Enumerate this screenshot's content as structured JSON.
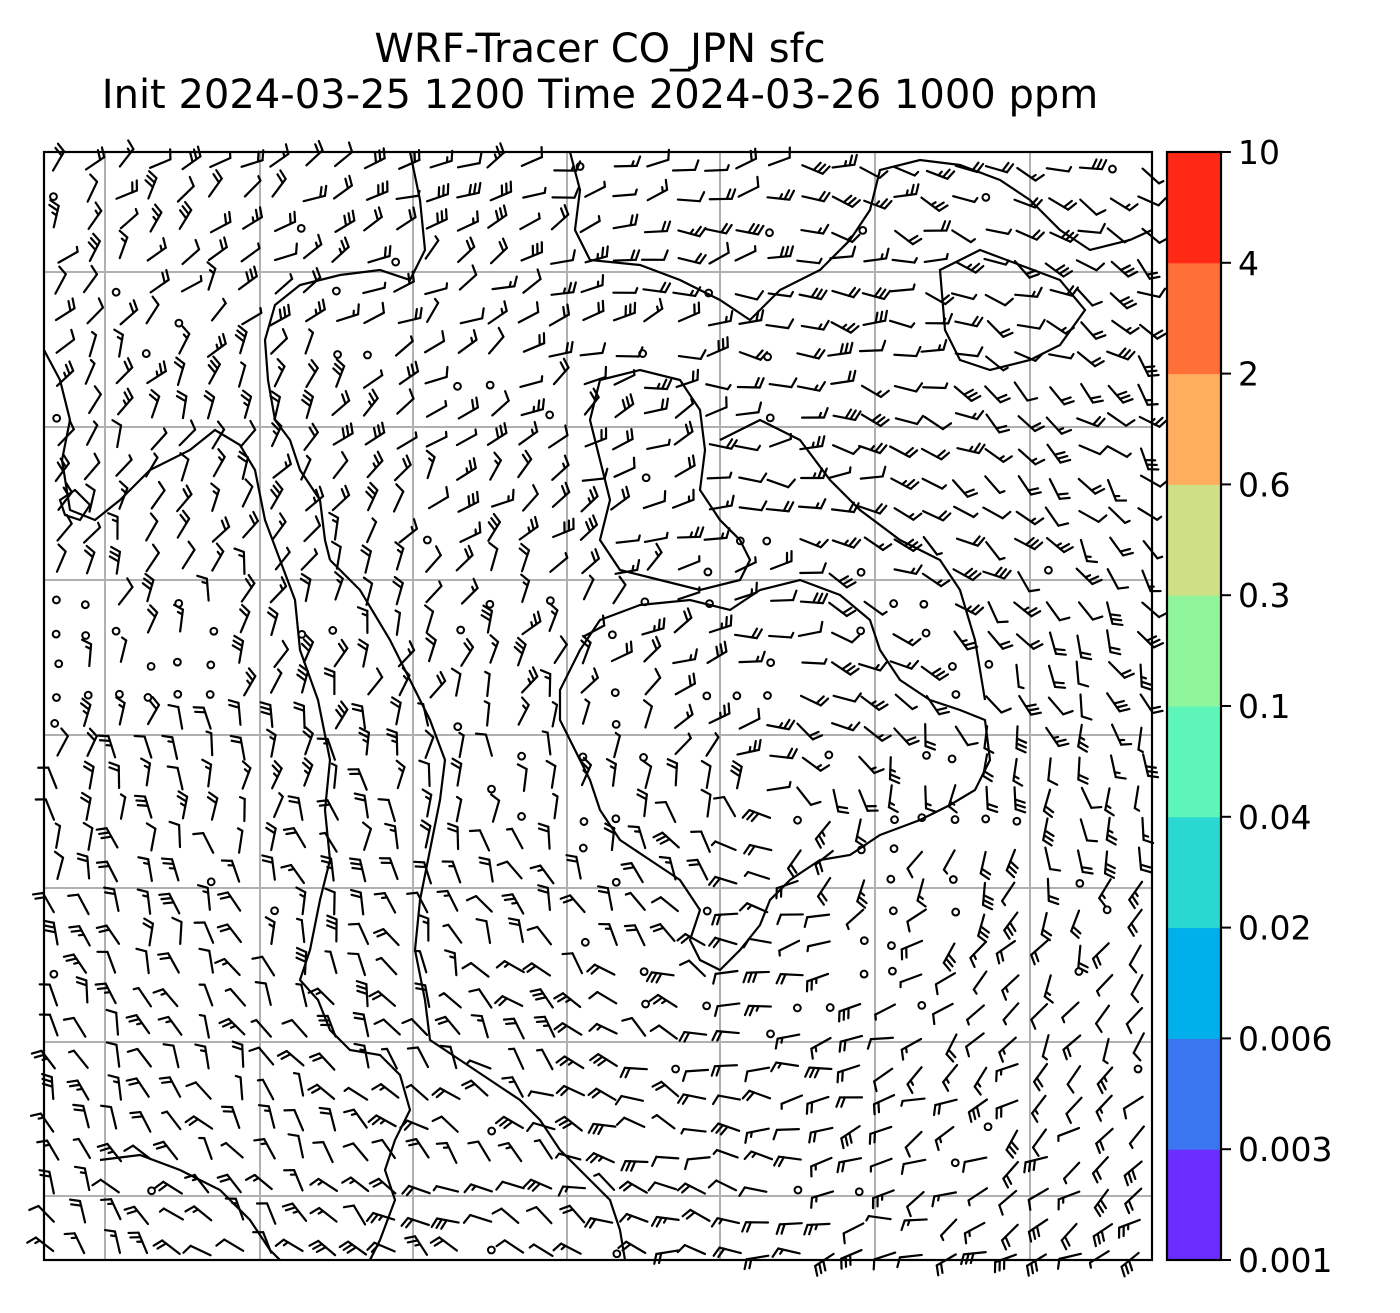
{
  "title": {
    "line1": "WRF-Tracer CO_JPN sfc",
    "line2": "Init 2024-03-25 1200 Time 2024-03-26 1000 ppm"
  },
  "colorbar": {
    "tick_labels": [
      "0.001",
      "0.003",
      "0.006",
      "0.02",
      "0.04",
      "0.1",
      "0.3",
      "0.6",
      "2",
      "4",
      "10"
    ],
    "colors": [
      "#6a2cff",
      "#3a76f0",
      "#00b0ea",
      "#2ad8d2",
      "#5df5b8",
      "#8ef59a",
      "#cee085",
      "#ffae5e",
      "#ff7038",
      "#ff2916"
    ]
  },
  "map": {
    "grid_color": "#b0b0b0",
    "coast_color": "#000000"
  }
}
